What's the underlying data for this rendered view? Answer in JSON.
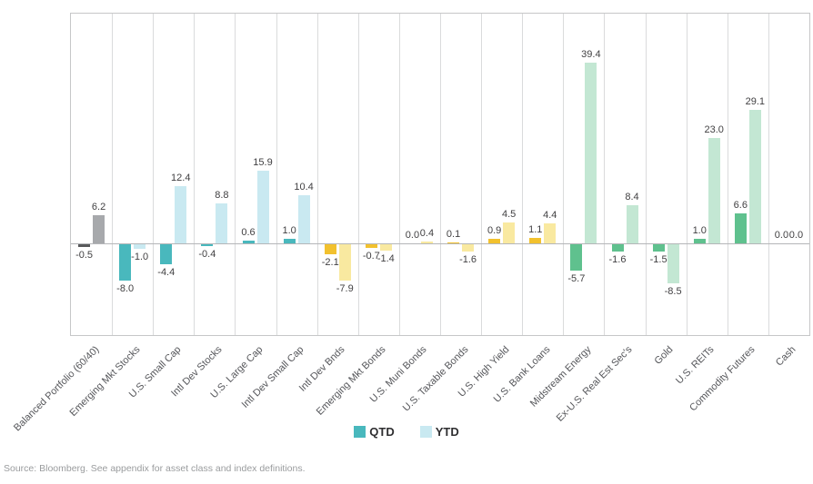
{
  "chart_data": {
    "type": "bar",
    "title": "",
    "xlabel": "",
    "ylabel": "",
    "ylim": [
      -12,
      44
    ],
    "grid": "vertical category separators only",
    "legend_position": "bottom-center",
    "zero_line": true,
    "value_labels": "one decimal, above positive bars, below negative bars",
    "categories": [
      "Balanced Portfolio (60/40)",
      "Emerging Mkt Stocks",
      "U.S. Small Cap",
      "Intl Dev Stocks",
      "U.S. Large Cap",
      "Intl Dev Small Cap",
      "Intl Dev Bnds",
      "Emerging Mkt Bonds",
      "U.S. Muni Bonds",
      "U.S. Taxable Bonds",
      "U.S. High Yield",
      "U.S. Bank Loans",
      "Midstream Energy",
      "Ex-U.S. Real Est Sec's",
      "Gold",
      "U.S. REITs",
      "Commodity Futures",
      "Cash"
    ],
    "series": [
      {
        "name": "QTD",
        "values": [
          -0.5,
          -8.0,
          -4.4,
          -0.4,
          0.6,
          1.0,
          -2.1,
          -0.7,
          0.0,
          0.1,
          0.9,
          1.1,
          -5.7,
          -1.6,
          -1.5,
          1.0,
          6.6,
          0.0
        ]
      },
      {
        "name": "YTD",
        "values": [
          6.2,
          -1.0,
          12.4,
          8.8,
          15.9,
          10.4,
          -7.9,
          -1.4,
          0.4,
          -1.6,
          4.5,
          4.4,
          39.4,
          8.4,
          -8.5,
          23.0,
          29.1,
          0.0
        ]
      }
    ],
    "category_groups": [
      "balanced",
      "stocks",
      "stocks",
      "stocks",
      "stocks",
      "stocks",
      "bonds",
      "bonds",
      "bonds",
      "bonds",
      "bonds",
      "bonds",
      "alts",
      "alts",
      "alts",
      "alts",
      "alts",
      "cash"
    ],
    "group_colors": {
      "balanced": {
        "qtd": "#58595b",
        "ytd": "#a7a9ac"
      },
      "stocks": {
        "qtd": "#49b8bd",
        "ytd": "#c9e9f1"
      },
      "bonds": {
        "qtd": "#f2c12e",
        "ytd": "#f9e9a0"
      },
      "alts": {
        "qtd": "#5fc18e",
        "ytd": "#c3e7d3"
      },
      "cash": {
        "qtd": "#5fc18e",
        "ytd": "#c3e7d3"
      }
    },
    "legend_colors": {
      "qtd": "#49b8bd",
      "ytd": "#c9e9f1"
    }
  },
  "source_note": "Source: Bloomberg. See appendix for asset class and index definitions."
}
